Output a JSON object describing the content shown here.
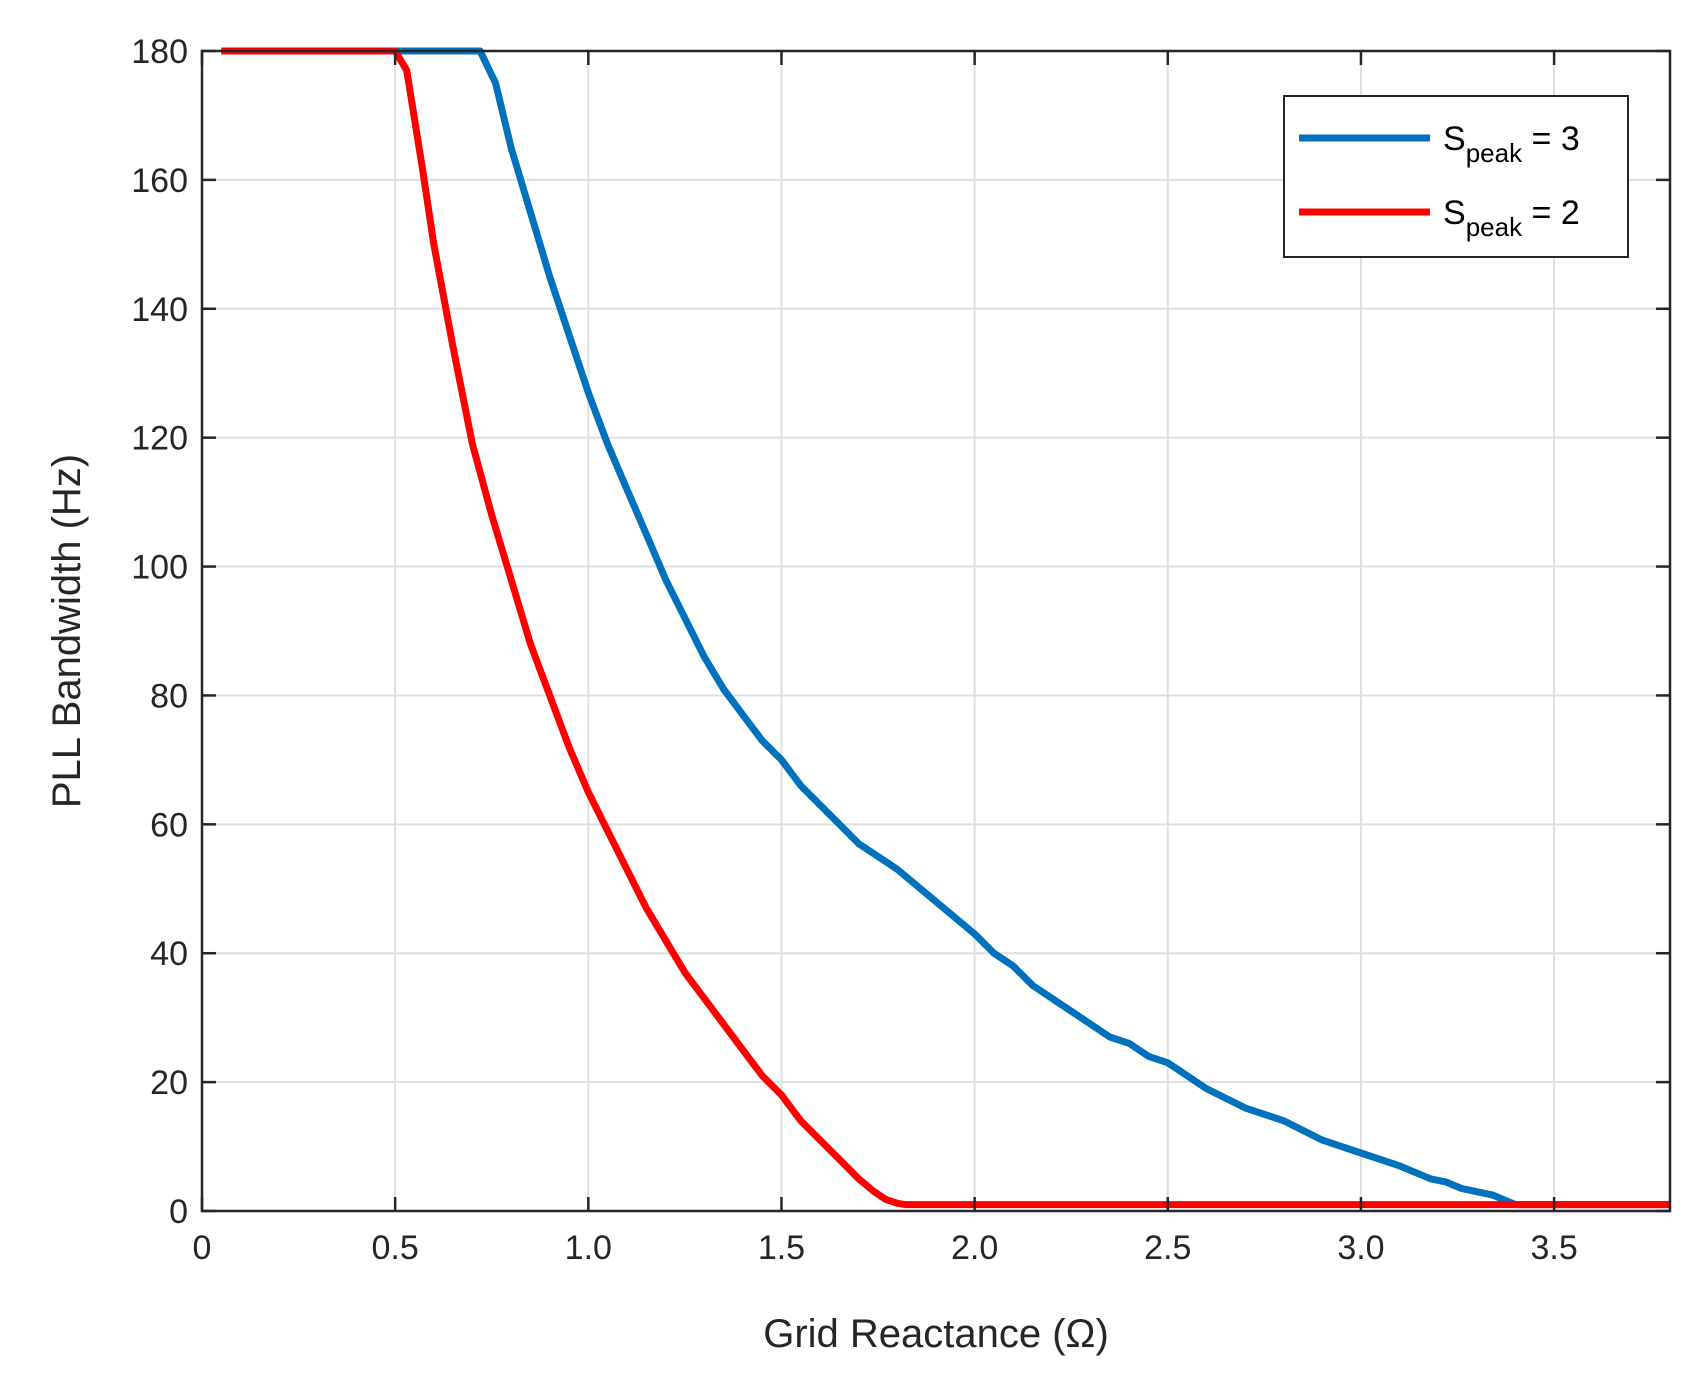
{
  "chart_data": {
    "type": "line",
    "title": "",
    "xlabel": "Grid Reactance (Ω)",
    "ylabel": "PLL Bandwidth (Hz)",
    "xlim": [
      0,
      3.8
    ],
    "ylim": [
      0,
      180
    ],
    "xticks": [
      0,
      0.5,
      1.0,
      1.5,
      2.0,
      2.5,
      3.0,
      3.5
    ],
    "xtick_labels": [
      "0",
      "0.5",
      "1.0",
      "1.5",
      "2.0",
      "2.5",
      "3.0",
      "3.5"
    ],
    "yticks": [
      0,
      20,
      40,
      60,
      80,
      100,
      120,
      140,
      160,
      180
    ],
    "ytick_labels": [
      "0",
      "20",
      "40",
      "60",
      "80",
      "100",
      "120",
      "140",
      "160",
      "180"
    ],
    "grid": true,
    "legend_position": "top-right",
    "series": [
      {
        "name": "S_peak = 3",
        "legend_main": "S",
        "legend_sub": "peak",
        "legend_suffix": " = 3",
        "color": "#0072BD",
        "x": [
          0.05,
          0.5,
          0.72,
          0.76,
          0.8,
          0.85,
          0.9,
          0.95,
          1.0,
          1.05,
          1.1,
          1.15,
          1.2,
          1.25,
          1.3,
          1.35,
          1.4,
          1.45,
          1.5,
          1.55,
          1.6,
          1.65,
          1.7,
          1.8,
          1.9,
          2.0,
          2.05,
          2.1,
          2.15,
          2.2,
          2.25,
          2.3,
          2.35,
          2.4,
          2.45,
          2.5,
          2.6,
          2.7,
          2.8,
          2.9,
          3.0,
          3.1,
          3.14,
          3.18,
          3.22,
          3.26,
          3.3,
          3.34,
          3.38,
          3.4,
          3.5,
          3.6,
          3.7,
          3.8
        ],
        "y": [
          180,
          180,
          180,
          175,
          165,
          155,
          145,
          136,
          127,
          119,
          112,
          105,
          98,
          92,
          86,
          81,
          77,
          73,
          70,
          66,
          63,
          60,
          57,
          53,
          48,
          43,
          40,
          38,
          35,
          33,
          31,
          29,
          27,
          26,
          24,
          23,
          19,
          16,
          14,
          11,
          9,
          7,
          6,
          5,
          4.5,
          3.5,
          3,
          2.5,
          1.5,
          1,
          1,
          1,
          1,
          1
        ]
      },
      {
        "name": "S_peak = 2",
        "legend_main": "S",
        "legend_sub": "peak",
        "legend_suffix": " = 2",
        "color": "#FF0000",
        "x": [
          0.05,
          0.5,
          0.53,
          0.57,
          0.6,
          0.65,
          0.7,
          0.75,
          0.8,
          0.85,
          0.9,
          0.95,
          1.0,
          1.05,
          1.1,
          1.15,
          1.2,
          1.25,
          1.3,
          1.35,
          1.4,
          1.45,
          1.5,
          1.55,
          1.6,
          1.65,
          1.7,
          1.74,
          1.77,
          1.8,
          1.82,
          2.0,
          2.5,
          3.0,
          3.5,
          3.8
        ],
        "y": [
          180,
          180,
          177,
          162,
          150,
          134,
          119,
          108,
          98,
          88,
          80,
          72,
          65,
          59,
          53,
          47,
          42,
          37,
          33,
          29,
          25,
          21,
          18,
          14,
          11,
          8,
          5,
          3,
          1.8,
          1.2,
          1,
          1,
          1,
          1,
          1,
          1
        ]
      }
    ]
  }
}
